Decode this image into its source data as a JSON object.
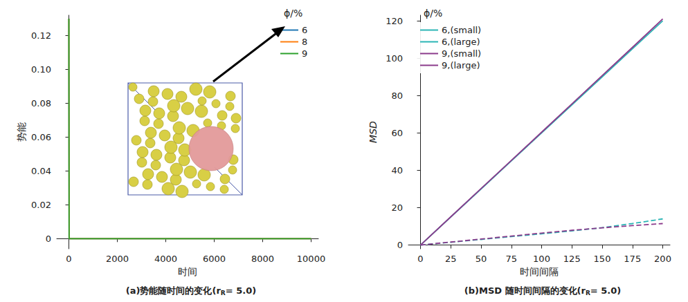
{
  "chart_data": [
    {
      "type": "line",
      "caption": {
        "text": "(a)势能随时间的变化(r",
        "sub": "R",
        "after": "= 5.0)"
      },
      "x_label": "时间",
      "y_label": "势能",
      "legend_title": "ϕ/%",
      "legend": "upper right",
      "grid": false,
      "x": [
        0,
        10,
        10000
      ],
      "xlim": [
        -500,
        10300
      ],
      "xticks": [
        0,
        2000,
        4000,
        6000,
        8000,
        10000
      ],
      "ylim": [
        -0.006,
        0.132
      ],
      "yticks": [
        0,
        0.02,
        0.04,
        0.06,
        0.08,
        {
          "value": 0.1,
          "label": "0.10"
        },
        0.12
      ],
      "series": [
        {
          "name": "6",
          "color": "#1f77b4",
          "line_style": "solid",
          "values": [
            0.13,
            0,
            0
          ]
        },
        {
          "name": "8",
          "color": "#ff7f0e",
          "line_style": "solid",
          "values": [
            0.13,
            0,
            0
          ]
        },
        {
          "name": "9",
          "color": "#2ca02c",
          "line_style": "solid",
          "values": [
            0.13,
            0,
            0
          ]
        }
      ]
    },
    {
      "type": "line",
      "caption": {
        "text": "(b)MSD 随时间间隔的变化(r",
        "sub": "R",
        "after": "= 5.0)"
      },
      "x_label": "时间间隔",
      "y_label": "MSD",
      "legend_title": "ϕ/%",
      "legend": "upper left",
      "grid": false,
      "x": [
        0,
        25,
        50,
        75,
        100,
        125,
        150,
        175,
        200
      ],
      "xlim": [
        -10,
        206
      ],
      "xticks": [
        0,
        25,
        50,
        75,
        100,
        125,
        150,
        175,
        200
      ],
      "ylim": [
        -2,
        123
      ],
      "yticks": [
        0,
        20,
        40,
        60,
        80,
        100,
        120
      ],
      "series": [
        {
          "name": "6,(small)",
          "color": "#2bb5b5",
          "line_style": "solid",
          "values": [
            0,
            15,
            30,
            45,
            60,
            75,
            90,
            105,
            120
          ]
        },
        {
          "name": "6,(large)",
          "color": "#2bb5b5",
          "line_style": "dashed",
          "values": [
            0,
            1.5,
            3.0,
            4.5,
            6.0,
            7.6,
            9.3,
            11.5,
            14
          ]
        },
        {
          "name": "9,(small)",
          "color": "#8b3a8b",
          "line_style": "solid",
          "values": [
            0,
            15.1,
            30.2,
            45.3,
            60.4,
            75.5,
            90.7,
            105.8,
            121
          ]
        },
        {
          "name": "9,(large)",
          "color": "#8b3a8b",
          "line_style": "dashed",
          "values": [
            0,
            1.6,
            3.2,
            4.8,
            6.4,
            7.9,
            9.2,
            10.4,
            11.5
          ]
        }
      ]
    }
  ]
}
